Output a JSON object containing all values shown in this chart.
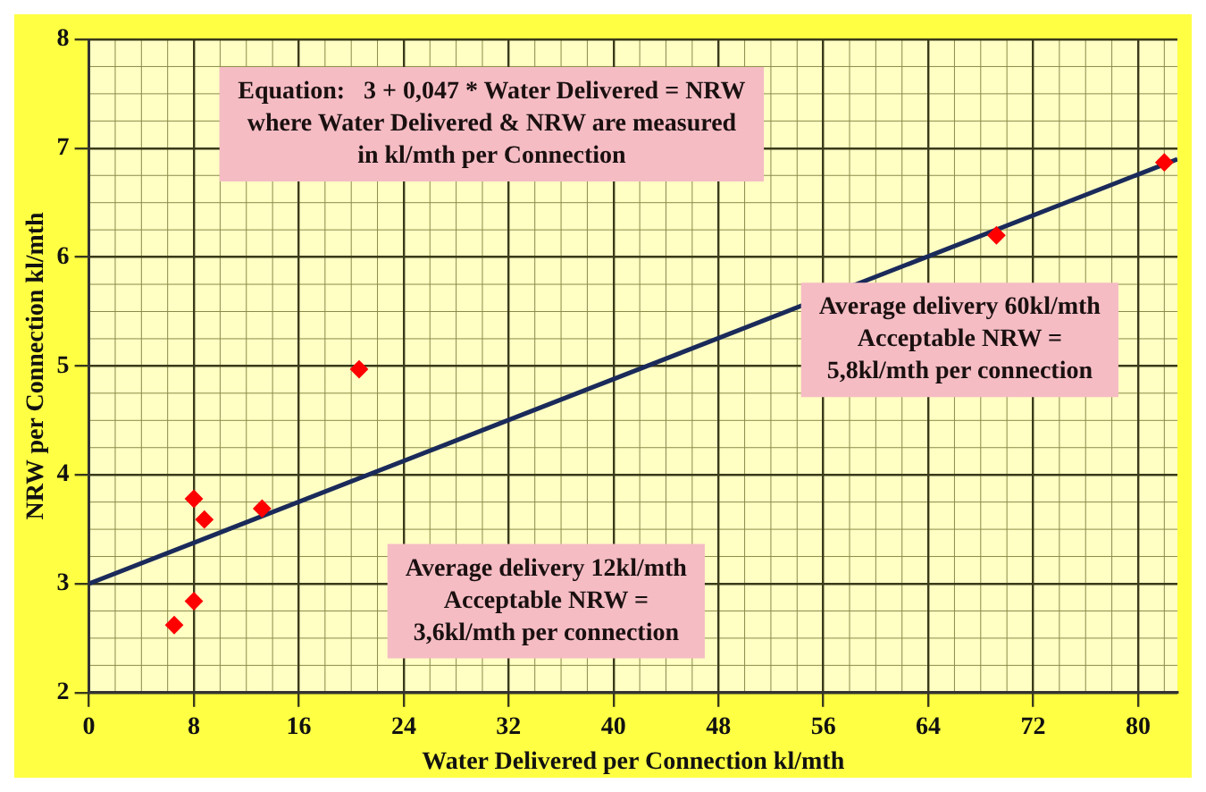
{
  "chart_data": {
    "type": "scatter",
    "xlabel": "Water Delivered per Connection kl/mth",
    "ylabel": "NRW per Connection kl/mth",
    "xlim": [
      0,
      83
    ],
    "ylim": [
      2,
      8
    ],
    "xticks": [
      0,
      8,
      16,
      24,
      32,
      40,
      48,
      56,
      64,
      72,
      80
    ],
    "yticks": [
      2,
      3,
      4,
      5,
      6,
      7,
      8
    ],
    "grid": true,
    "legend": false,
    "series": [
      {
        "type": "scatter",
        "color": "#ff0000",
        "marker": "diamond",
        "x": [
          6.5,
          8,
          8,
          8.8,
          13.2,
          20.6,
          69.2,
          82
        ],
        "values": [
          2.62,
          2.84,
          3.78,
          3.59,
          3.69,
          4.97,
          6.2,
          6.87
        ]
      },
      {
        "type": "line",
        "color": "#1a2a5a",
        "marker": "none",
        "line_style": "solid",
        "x": [
          0,
          83
        ],
        "values": [
          3,
          6.9
        ]
      }
    ],
    "annotations": [
      "Equation:   3 + 0,047 * Water Delivered = NRW\nwhere Water Delivered & NRW are measured\nin kl/mth per Connection",
      "Average delivery 60kl/mth\nAcceptable NRW =\n5,8kl/mth per connection",
      "Average delivery 12kl/mth\nAcceptable NRW =\n3,6kl/mth per connection"
    ]
  }
}
